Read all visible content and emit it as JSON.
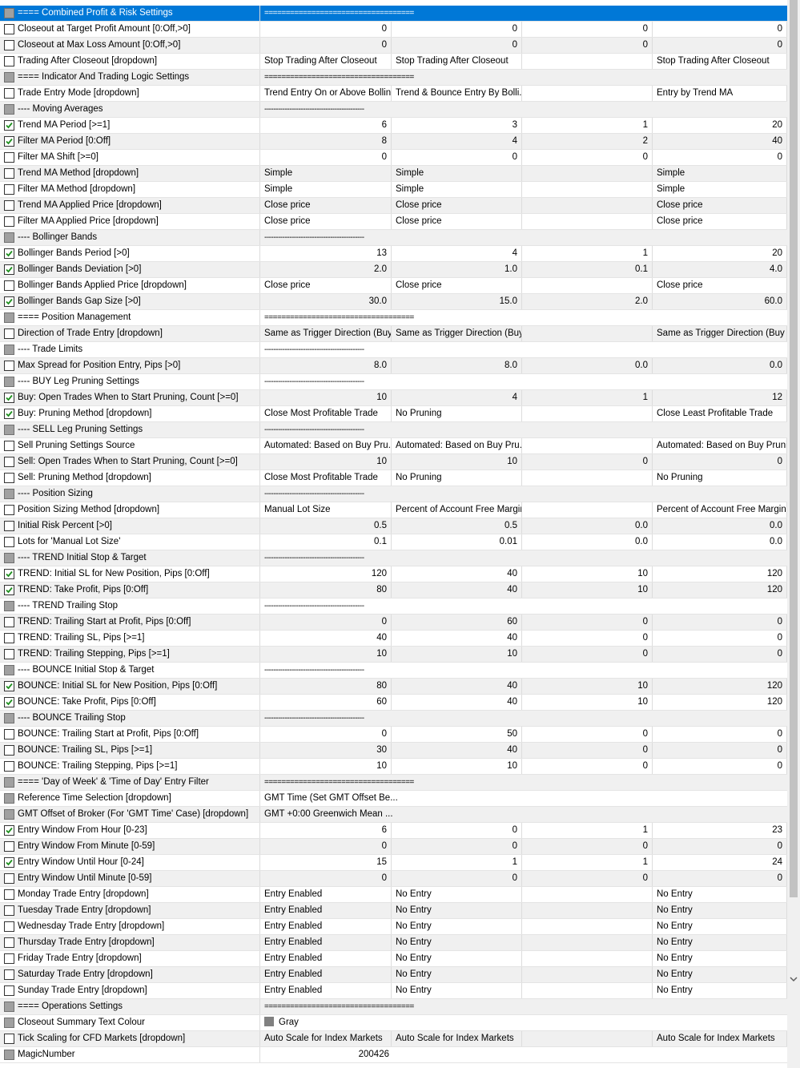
{
  "rows": [
    {
      "kind": "header",
      "label": "==== Combined Profit & Risk Settings",
      "section": "===================================",
      "selected": true
    },
    {
      "label": "Closeout at Target Profit Amount [0:Off,>0]",
      "cells": [
        "0",
        "0",
        "0",
        "0"
      ]
    },
    {
      "label": "Closeout at Max Loss Amount [0:Off,>0]",
      "cells": [
        "0",
        "0",
        "0",
        "0"
      ]
    },
    {
      "label": "Trading After Closeout [dropdown]",
      "cells": [
        "Stop Trading After Closeout",
        "Stop Trading After Closeout",
        null,
        "Stop Trading After Closeout"
      ]
    },
    {
      "kind": "header",
      "label": "==== Indicator And Trading Logic Settings",
      "section": "==================================="
    },
    {
      "label": "Trade Entry Mode [dropdown]",
      "cells": [
        "Trend Entry On or Above Bollin...",
        "Trend & Bounce Entry By Bolli...",
        null,
        "Entry by Trend MA"
      ]
    },
    {
      "kind": "sub",
      "label": "---- Moving Averages",
      "section": "--------------------------------------------"
    },
    {
      "label": "Trend MA Period [>=1]",
      "cells": [
        "6",
        "3",
        "1",
        "20"
      ],
      "checked": true
    },
    {
      "label": "Filter MA Period [0:Off]",
      "cells": [
        "8",
        "4",
        "2",
        "40"
      ],
      "checked": true
    },
    {
      "label": "Filter MA Shift [>=0]",
      "cells": [
        "0",
        "0",
        "0",
        "0"
      ]
    },
    {
      "label": "Trend MA Method [dropdown]",
      "cells": [
        "Simple",
        "Simple",
        null,
        "Simple"
      ]
    },
    {
      "label": "Filter MA Method [dropdown]",
      "cells": [
        "Simple",
        "Simple",
        null,
        "Simple"
      ]
    },
    {
      "label": "Trend MA Applied Price [dropdown]",
      "cells": [
        "Close price",
        "Close price",
        null,
        "Close price"
      ]
    },
    {
      "label": "Filter MA Applied Price [dropdown]",
      "cells": [
        "Close price",
        "Close price",
        null,
        "Close price"
      ]
    },
    {
      "kind": "sub",
      "label": "---- Bollinger Bands",
      "section": "--------------------------------------------"
    },
    {
      "label": "Bollinger Bands Period [>0]",
      "cells": [
        "13",
        "4",
        "1",
        "20"
      ],
      "checked": true
    },
    {
      "label": "Bollinger Bands Deviation [>0]",
      "cells": [
        "2.0",
        "1.0",
        "0.1",
        "4.0"
      ],
      "checked": true
    },
    {
      "label": "Bollinger Bands Applied Price [dropdown]",
      "cells": [
        "Close price",
        "Close price",
        null,
        "Close price"
      ]
    },
    {
      "label": "Bollinger Bands Gap Size [>0]",
      "cells": [
        "30.0",
        "15.0",
        "2.0",
        "60.0"
      ],
      "checked": true
    },
    {
      "kind": "header",
      "label": "==== Position Management",
      "section": "==================================="
    },
    {
      "label": "Direction of Trade Entry [dropdown]",
      "cells": [
        "Same as Trigger Direction (Buy...",
        "Same as Trigger Direction (Buy...",
        null,
        "Same as Trigger Direction (Buy ..."
      ]
    },
    {
      "kind": "sub",
      "label": "---- Trade Limits",
      "section": "--------------------------------------------"
    },
    {
      "label": "Max Spread for Position Entry, Pips [>0]",
      "cells": [
        "8.0",
        "8.0",
        "0.0",
        "0.0"
      ]
    },
    {
      "kind": "sub",
      "label": "---- BUY Leg Pruning Settings",
      "section": "--------------------------------------------"
    },
    {
      "label": "Buy: Open Trades When to Start Pruning, Count [>=0]",
      "cells": [
        "10",
        "4",
        "1",
        "12"
      ],
      "checked": true
    },
    {
      "label": "Buy: Pruning Method [dropdown]",
      "cells": [
        "Close Most Profitable Trade",
        "No Pruning",
        null,
        "Close Least Profitable Trade"
      ],
      "checked": true
    },
    {
      "kind": "sub",
      "label": "---- SELL Leg Pruning Settings",
      "section": "--------------------------------------------"
    },
    {
      "label": "Sell Pruning Settings Source",
      "cells": [
        "Automated: Based on Buy Pru...",
        "Automated: Based on Buy Pru...",
        null,
        "Automated: Based on Buy Pruni..."
      ]
    },
    {
      "label": "Sell: Open Trades When to Start Pruning, Count [>=0]",
      "cells": [
        "10",
        "10",
        "0",
        "0"
      ]
    },
    {
      "label": "Sell: Pruning Method [dropdown]",
      "cells": [
        "Close Most Profitable Trade",
        "No Pruning",
        null,
        "No Pruning"
      ]
    },
    {
      "kind": "sub",
      "label": "---- Position Sizing",
      "section": "--------------------------------------------"
    },
    {
      "label": "Position Sizing Method [dropdown]",
      "cells": [
        "Manual Lot Size",
        "Percent of Account Free Margin",
        null,
        "Percent of Account Free Margin"
      ]
    },
    {
      "label": "Initial Risk Percent [>0]",
      "cells": [
        "0.5",
        "0.5",
        "0.0",
        "0.0"
      ]
    },
    {
      "label": "Lots for 'Manual Lot Size'",
      "cells": [
        "0.1",
        "0.01",
        "0.0",
        "0.0"
      ]
    },
    {
      "kind": "sub",
      "label": "---- TREND Initial Stop & Target",
      "section": "--------------------------------------------"
    },
    {
      "label": "TREND: Initial SL for New Position, Pips [0:Off]",
      "cells": [
        "120",
        "40",
        "10",
        "120"
      ],
      "checked": true
    },
    {
      "label": "TREND: Take Profit, Pips [0:Off]",
      "cells": [
        "80",
        "40",
        "10",
        "120"
      ],
      "checked": true
    },
    {
      "kind": "sub",
      "label": "---- TREND Trailing Stop",
      "section": "--------------------------------------------"
    },
    {
      "label": "TREND: Trailing Start at Profit, Pips [0:Off]",
      "cells": [
        "0",
        "60",
        "0",
        "0"
      ]
    },
    {
      "label": "TREND: Trailing SL, Pips [>=1]",
      "cells": [
        "40",
        "40",
        "0",
        "0"
      ]
    },
    {
      "label": "TREND: Trailing Stepping, Pips [>=1]",
      "cells": [
        "10",
        "10",
        "0",
        "0"
      ]
    },
    {
      "kind": "sub",
      "label": "---- BOUNCE Initial Stop & Target",
      "section": "--------------------------------------------"
    },
    {
      "label": "BOUNCE: Initial SL for New Position, Pips [0:Off]",
      "cells": [
        "80",
        "40",
        "10",
        "120"
      ],
      "checked": true
    },
    {
      "label": "BOUNCE: Take Profit, Pips [0:Off]",
      "cells": [
        "60",
        "40",
        "10",
        "120"
      ],
      "checked": true
    },
    {
      "kind": "sub",
      "label": "---- BOUNCE Trailing Stop",
      "section": "--------------------------------------------"
    },
    {
      "label": "BOUNCE: Trailing Start at Profit, Pips [0:Off]",
      "cells": [
        "0",
        "50",
        "0",
        "0"
      ]
    },
    {
      "label": "BOUNCE: Trailing SL, Pips [>=1]",
      "cells": [
        "30",
        "40",
        "0",
        "0"
      ]
    },
    {
      "label": "BOUNCE: Trailing Stepping, Pips [>=1]",
      "cells": [
        "10",
        "10",
        "0",
        "0"
      ]
    },
    {
      "kind": "header",
      "label": "==== 'Day of Week' & 'Time of Day' Entry Filter",
      "section": "==================================="
    },
    {
      "label": "Reference Time Selection [dropdown]",
      "value": "GMT Time (Set GMT Offset Be...",
      "locked": true
    },
    {
      "label": "GMT Offset of Broker (For 'GMT Time' Case) [dropdown]",
      "value": "GMT +0:00  Greenwich Mean ...",
      "locked": true
    },
    {
      "label": "Entry Window From Hour [0-23]",
      "cells": [
        "6",
        "0",
        "1",
        "23"
      ],
      "checked": true
    },
    {
      "label": "Entry Window From Minute [0-59]",
      "cells": [
        "0",
        "0",
        "0",
        "0"
      ]
    },
    {
      "label": "Entry Window Until Hour [0-24]",
      "cells": [
        "15",
        "1",
        "1",
        "24"
      ],
      "checked": true
    },
    {
      "label": "Entry Window Until Minute [0-59]",
      "cells": [
        "0",
        "0",
        "0",
        "0"
      ]
    },
    {
      "label": "Monday Trade Entry [dropdown]",
      "cells": [
        "Entry Enabled",
        "No Entry",
        null,
        "No Entry"
      ]
    },
    {
      "label": "Tuesday Trade Entry [dropdown]",
      "cells": [
        "Entry Enabled",
        "No Entry",
        null,
        "No Entry"
      ]
    },
    {
      "label": "Wednesday Trade Entry [dropdown]",
      "cells": [
        "Entry Enabled",
        "No Entry",
        null,
        "No Entry"
      ]
    },
    {
      "label": "Thursday Trade Entry [dropdown]",
      "cells": [
        "Entry Enabled",
        "No Entry",
        null,
        "No Entry"
      ]
    },
    {
      "label": "Friday Trade Entry [dropdown]",
      "cells": [
        "Entry Enabled",
        "No Entry",
        null,
        "No Entry"
      ]
    },
    {
      "label": "Saturday Trade Entry [dropdown]",
      "cells": [
        "Entry Enabled",
        "No Entry",
        null,
        "No Entry"
      ]
    },
    {
      "label": "Sunday Trade Entry [dropdown]",
      "cells": [
        "Entry Enabled",
        "No Entry",
        null,
        "No Entry"
      ]
    },
    {
      "kind": "header",
      "label": "==== Operations Settings",
      "section": "==================================="
    },
    {
      "label": "Closeout Summary Text Colour",
      "value": "Gray",
      "swatch": "#808080",
      "locked": true
    },
    {
      "label": "Tick Scaling for CFD Markets [dropdown]",
      "cells": [
        "Auto Scale for Index Markets",
        "Auto Scale for Index Markets",
        null,
        "Auto Scale for Index Markets"
      ]
    },
    {
      "label": "MagicNumber",
      "value": "200426",
      "locked": true,
      "numeric": true
    }
  ]
}
